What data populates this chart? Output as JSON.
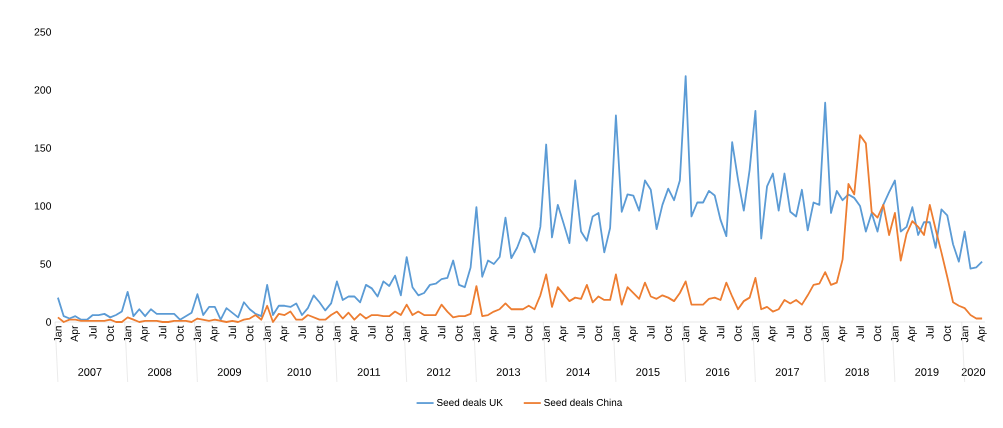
{
  "chart_data": {
    "type": "line",
    "categories": [
      "Jan",
      null,
      null,
      "Apr",
      null,
      null,
      "Jul",
      null,
      null,
      "Oct",
      null,
      null,
      "Jan",
      null,
      null,
      "Apr",
      null,
      null,
      "Jul",
      null,
      null,
      "Oct",
      null,
      null,
      "Jan",
      null,
      null,
      "Apr",
      null,
      null,
      "Jul",
      null,
      null,
      "Oct",
      null,
      null,
      "Jan",
      null,
      null,
      "Apr",
      null,
      null,
      "Jul",
      null,
      null,
      "Oct",
      null,
      null,
      "Jan",
      null,
      null,
      "Apr",
      null,
      null,
      "Jul",
      null,
      null,
      "Oct",
      null,
      null,
      "Jan",
      null,
      null,
      "Apr",
      null,
      null,
      "Jul",
      null,
      null,
      "Oct",
      null,
      null,
      "Jan",
      null,
      null,
      "Apr",
      null,
      null,
      "Jul",
      null,
      null,
      "Oct",
      null,
      null,
      "Jan",
      null,
      null,
      "Apr",
      null,
      null,
      "Jul",
      null,
      null,
      "Oct",
      null,
      null,
      "Jan",
      null,
      null,
      "Apr",
      null,
      null,
      "Jul",
      null,
      null,
      "Oct",
      null,
      null,
      "Jan",
      null,
      null,
      "Apr",
      null,
      null,
      "Jul",
      null,
      null,
      "Oct",
      null,
      null,
      "Jan",
      null,
      null,
      "Apr",
      null,
      null,
      "Jul",
      null,
      null,
      "Oct",
      null,
      null,
      "Jan",
      null,
      null,
      "Apr",
      null,
      null,
      "Jul",
      null,
      null,
      "Oct",
      null,
      null,
      "Jan",
      null,
      null,
      "Apr",
      null,
      null,
      "Jul",
      null,
      null,
      "Oct",
      null,
      null,
      "Jan",
      null,
      null,
      "Apr"
    ],
    "series": [
      {
        "name": "Seed deals UK",
        "color": "#5b9bd5",
        "values": [
          21,
          5,
          3,
          5,
          2,
          2,
          6,
          6,
          7,
          4,
          6,
          9,
          26,
          5,
          11,
          5,
          11,
          7,
          7,
          7,
          7,
          2,
          5,
          8,
          24,
          6,
          13,
          13,
          2,
          12,
          8,
          4,
          17,
          11,
          7,
          5,
          32,
          6,
          14,
          14,
          13,
          16,
          6,
          12,
          23,
          17,
          10,
          16,
          35,
          19,
          22,
          22,
          17,
          32,
          29,
          22,
          35,
          31,
          40,
          23,
          56,
          30,
          23,
          25,
          32,
          33,
          37,
          38,
          53,
          32,
          30,
          47,
          99,
          39,
          53,
          50,
          56,
          90,
          55,
          64,
          77,
          73,
          60,
          82,
          153,
          73,
          101,
          85,
          68,
          122,
          78,
          70,
          91,
          94,
          60,
          81,
          178,
          95,
          110,
          109,
          96,
          122,
          114,
          80,
          101,
          115,
          105,
          122,
          212,
          91,
          103,
          103,
          113,
          109,
          88,
          74,
          155,
          123,
          96,
          131,
          182,
          72,
          117,
          128,
          96,
          128,
          95,
          91,
          114,
          79,
          103,
          101,
          189,
          94,
          113,
          105,
          110,
          107,
          100,
          78,
          94,
          78,
          101,
          112,
          122,
          78,
          82,
          99,
          75,
          86,
          86,
          64,
          97,
          92,
          67,
          52,
          78,
          46,
          47,
          52
        ]
      },
      {
        "name": "Seed deals China",
        "color": "#ed7d31",
        "values": [
          4,
          0,
          2,
          2,
          1,
          1,
          1,
          1,
          1,
          2,
          0,
          0,
          4,
          2,
          0,
          1,
          1,
          1,
          0,
          0,
          1,
          1,
          1,
          0,
          3,
          2,
          1,
          2,
          1,
          0,
          1,
          0,
          2,
          3,
          6,
          2,
          14,
          0,
          7,
          6,
          9,
          2,
          2,
          6,
          4,
          2,
          2,
          6,
          9,
          3,
          8,
          2,
          7,
          3,
          6,
          6,
          5,
          5,
          9,
          6,
          15,
          6,
          9,
          6,
          6,
          6,
          15,
          9,
          4,
          5,
          5,
          7,
          31,
          5,
          6,
          9,
          11,
          16,
          11,
          11,
          11,
          14,
          11,
          23,
          41,
          13,
          30,
          24,
          18,
          21,
          20,
          32,
          17,
          22,
          19,
          19,
          41,
          15,
          30,
          25,
          20,
          34,
          22,
          20,
          23,
          21,
          18,
          25,
          35,
          15,
          15,
          15,
          20,
          21,
          19,
          34,
          22,
          11,
          18,
          21,
          38,
          11,
          13,
          9,
          11,
          19,
          16,
          19,
          15,
          23,
          32,
          33,
          43,
          32,
          34,
          54,
          119,
          110,
          161,
          154,
          95,
          90,
          101,
          75,
          94,
          53,
          76,
          87,
          82,
          75,
          101,
          80,
          60,
          39,
          17,
          14,
          12,
          6,
          3,
          3
        ]
      }
    ],
    "ylim": [
      0,
      250
    ],
    "yticks": [
      0,
      50,
      100,
      150,
      200,
      250
    ],
    "grid": false,
    "legend": "bottom",
    "line_style": "solid",
    "marker": "none",
    "annotations": [
      "2007",
      "2008",
      "2009",
      "2010",
      "2011",
      "2012",
      "2013",
      "2014",
      "2015",
      "2016",
      "2017",
      "2018",
      "2019",
      "2020"
    ]
  }
}
